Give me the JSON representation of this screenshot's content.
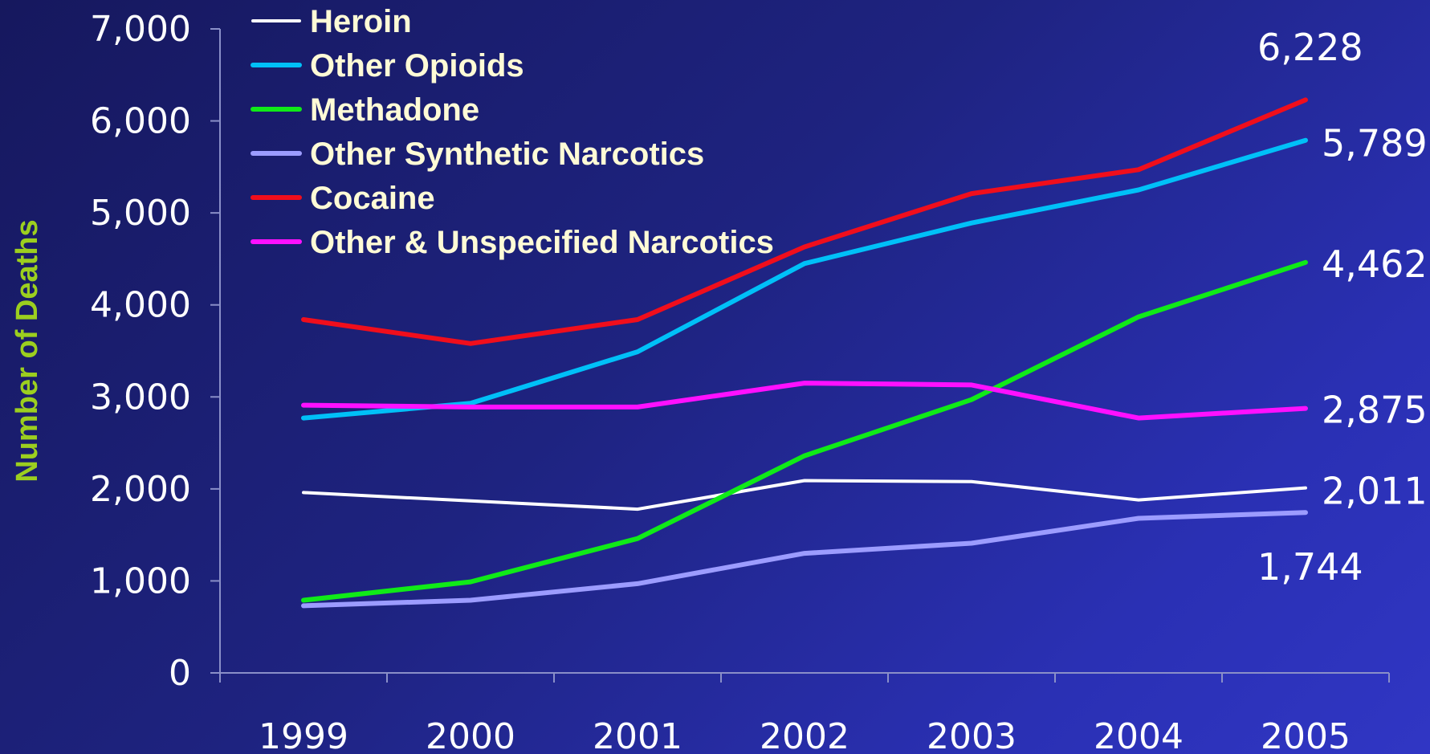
{
  "chart_data": {
    "type": "line",
    "ylabel": "Number of Deaths",
    "xlabel": "",
    "categories": [
      "1999",
      "2000",
      "2001",
      "2002",
      "2003",
      "2004",
      "2005"
    ],
    "ylim": [
      0,
      7000
    ],
    "yticks": [
      0,
      1000,
      2000,
      3000,
      4000,
      5000,
      6000,
      7000
    ],
    "ytick_labels": [
      "0",
      "1,000",
      "2,000",
      "3,000",
      "4,000",
      "5,000",
      "6,000",
      "7,000"
    ],
    "legend_position": "top-left",
    "grid": false,
    "series": [
      {
        "name": "Heroin",
        "color": "#ffffff",
        "width": "thin",
        "values": [
          1960,
          1870,
          1780,
          2090,
          2080,
          1880,
          2011
        ],
        "end_label": "2,011"
      },
      {
        "name": "Other Opioids",
        "color": "#00c0f8",
        "width": "thick",
        "values": [
          2770,
          2930,
          3490,
          4450,
          4890,
          5250,
          5789
        ],
        "end_label": "5,789"
      },
      {
        "name": "Methadone",
        "color": "#10ea18",
        "width": "thick",
        "values": [
          790,
          990,
          1460,
          2360,
          2970,
          3870,
          4462
        ],
        "end_label": "4,462"
      },
      {
        "name": "Other Synthetic Narcotics",
        "color": "#9c9cff",
        "width": "thick",
        "values": [
          730,
          790,
          970,
          1300,
          1410,
          1680,
          1744
        ],
        "end_label": "1,744"
      },
      {
        "name": "Cocaine",
        "color": "#f00e1c",
        "width": "thick",
        "values": [
          3840,
          3580,
          3840,
          4630,
          5210,
          5470,
          6228
        ],
        "end_label": "6,228"
      },
      {
        "name": "Other & Unspecified Narcotics",
        "color": "#ff10ff",
        "width": "thick",
        "values": [
          2910,
          2890,
          2890,
          3150,
          3130,
          2770,
          2875
        ],
        "end_label": "2,875"
      }
    ]
  }
}
